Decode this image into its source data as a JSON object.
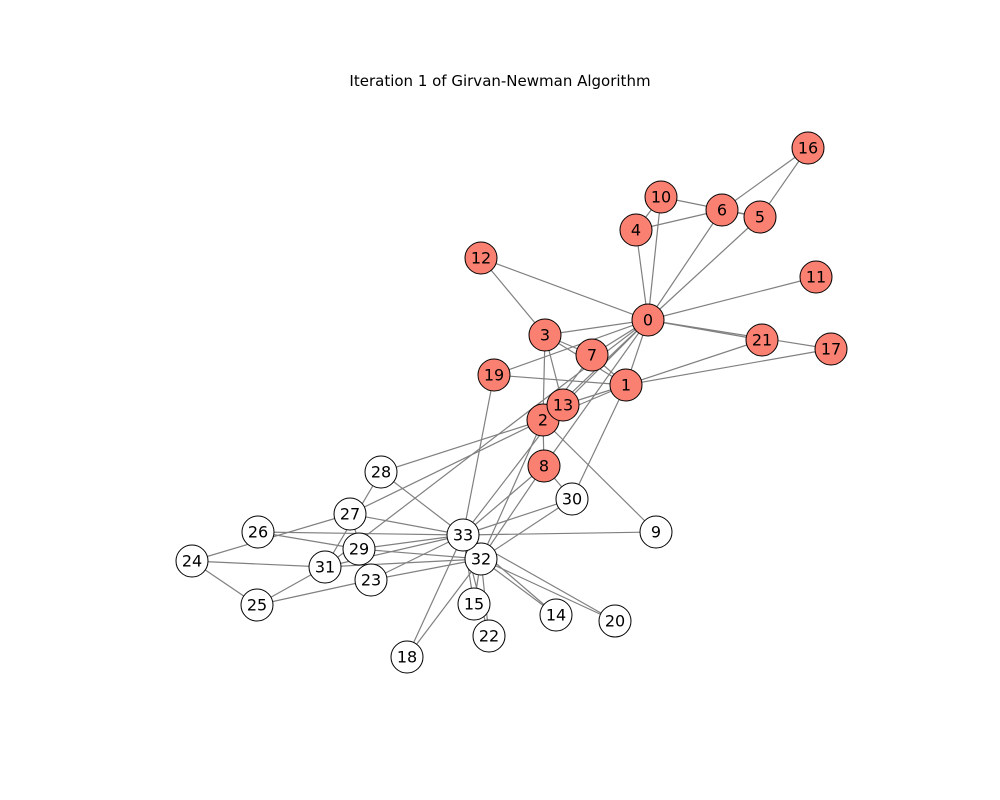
{
  "title": "Iteration 1 of Girvan-Newman Algorithm",
  "colors": {
    "community_a": "#fa8072",
    "community_b": "#ffffff",
    "edge": "#808080"
  },
  "nodes": [
    {
      "id": "0",
      "label": "0",
      "community": "a"
    },
    {
      "id": "1",
      "label": "1",
      "community": "a"
    },
    {
      "id": "2",
      "label": "2",
      "community": "a"
    },
    {
      "id": "3",
      "label": "3",
      "community": "a"
    },
    {
      "id": "4",
      "label": "4",
      "community": "a"
    },
    {
      "id": "5",
      "label": "5",
      "community": "a"
    },
    {
      "id": "6",
      "label": "6",
      "community": "a"
    },
    {
      "id": "7",
      "label": "7",
      "community": "a"
    },
    {
      "id": "8",
      "label": "8",
      "community": "a"
    },
    {
      "id": "9",
      "label": "9",
      "community": "b"
    },
    {
      "id": "10",
      "label": "10",
      "community": "a"
    },
    {
      "id": "11",
      "label": "11",
      "community": "a"
    },
    {
      "id": "12",
      "label": "12",
      "community": "a"
    },
    {
      "id": "13",
      "label": "13",
      "community": "a"
    },
    {
      "id": "14",
      "label": "14",
      "community": "b"
    },
    {
      "id": "15",
      "label": "15",
      "community": "b"
    },
    {
      "id": "16",
      "label": "16",
      "community": "a"
    },
    {
      "id": "17",
      "label": "17",
      "community": "a"
    },
    {
      "id": "18",
      "label": "18",
      "community": "b"
    },
    {
      "id": "19",
      "label": "19",
      "community": "a"
    },
    {
      "id": "20",
      "label": "20",
      "community": "b"
    },
    {
      "id": "21",
      "label": "21",
      "community": "a"
    },
    {
      "id": "22",
      "label": "22",
      "community": "b"
    },
    {
      "id": "23",
      "label": "23",
      "community": "b"
    },
    {
      "id": "24",
      "label": "24",
      "community": "b"
    },
    {
      "id": "25",
      "label": "25",
      "community": "b"
    },
    {
      "id": "26",
      "label": "26",
      "community": "b"
    },
    {
      "id": "27",
      "label": "27",
      "community": "b"
    },
    {
      "id": "28",
      "label": "28",
      "community": "b"
    },
    {
      "id": "29",
      "label": "29",
      "community": "b"
    },
    {
      "id": "30",
      "label": "30",
      "community": "b"
    },
    {
      "id": "31",
      "label": "31",
      "community": "b"
    },
    {
      "id": "32",
      "label": "32",
      "community": "b"
    },
    {
      "id": "33",
      "label": "33",
      "community": "b"
    }
  ],
  "edges": [
    [
      "0",
      "1"
    ],
    [
      "0",
      "2"
    ],
    [
      "0",
      "3"
    ],
    [
      "0",
      "4"
    ],
    [
      "0",
      "5"
    ],
    [
      "0",
      "6"
    ],
    [
      "0",
      "7"
    ],
    [
      "0",
      "8"
    ],
    [
      "0",
      "10"
    ],
    [
      "0",
      "11"
    ],
    [
      "0",
      "12"
    ],
    [
      "0",
      "13"
    ],
    [
      "0",
      "17"
    ],
    [
      "0",
      "19"
    ],
    [
      "0",
      "21"
    ],
    [
      "0",
      "31"
    ],
    [
      "1",
      "2"
    ],
    [
      "1",
      "3"
    ],
    [
      "1",
      "7"
    ],
    [
      "1",
      "13"
    ],
    [
      "1",
      "17"
    ],
    [
      "1",
      "19"
    ],
    [
      "1",
      "21"
    ],
    [
      "1",
      "30"
    ],
    [
      "2",
      "3"
    ],
    [
      "2",
      "7"
    ],
    [
      "2",
      "8"
    ],
    [
      "2",
      "9"
    ],
    [
      "2",
      "13"
    ],
    [
      "2",
      "27"
    ],
    [
      "2",
      "28"
    ],
    [
      "2",
      "32"
    ],
    [
      "3",
      "7"
    ],
    [
      "3",
      "12"
    ],
    [
      "3",
      "13"
    ],
    [
      "4",
      "6"
    ],
    [
      "4",
      "10"
    ],
    [
      "5",
      "6"
    ],
    [
      "5",
      "10"
    ],
    [
      "5",
      "16"
    ],
    [
      "6",
      "16"
    ],
    [
      "8",
      "30"
    ],
    [
      "8",
      "32"
    ],
    [
      "8",
      "33"
    ],
    [
      "9",
      "33"
    ],
    [
      "13",
      "33"
    ],
    [
      "14",
      "32"
    ],
    [
      "14",
      "33"
    ],
    [
      "15",
      "32"
    ],
    [
      "15",
      "33"
    ],
    [
      "18",
      "32"
    ],
    [
      "18",
      "33"
    ],
    [
      "19",
      "33"
    ],
    [
      "20",
      "32"
    ],
    [
      "20",
      "33"
    ],
    [
      "22",
      "32"
    ],
    [
      "22",
      "33"
    ],
    [
      "23",
      "25"
    ],
    [
      "23",
      "27"
    ],
    [
      "23",
      "29"
    ],
    [
      "23",
      "32"
    ],
    [
      "23",
      "33"
    ],
    [
      "24",
      "25"
    ],
    [
      "24",
      "27"
    ],
    [
      "24",
      "31"
    ],
    [
      "25",
      "31"
    ],
    [
      "26",
      "29"
    ],
    [
      "26",
      "33"
    ],
    [
      "27",
      "33"
    ],
    [
      "28",
      "31"
    ],
    [
      "28",
      "33"
    ],
    [
      "29",
      "32"
    ],
    [
      "29",
      "33"
    ],
    [
      "30",
      "32"
    ],
    [
      "30",
      "33"
    ],
    [
      "31",
      "32"
    ],
    [
      "31",
      "33"
    ],
    [
      "32",
      "33"
    ]
  ]
}
